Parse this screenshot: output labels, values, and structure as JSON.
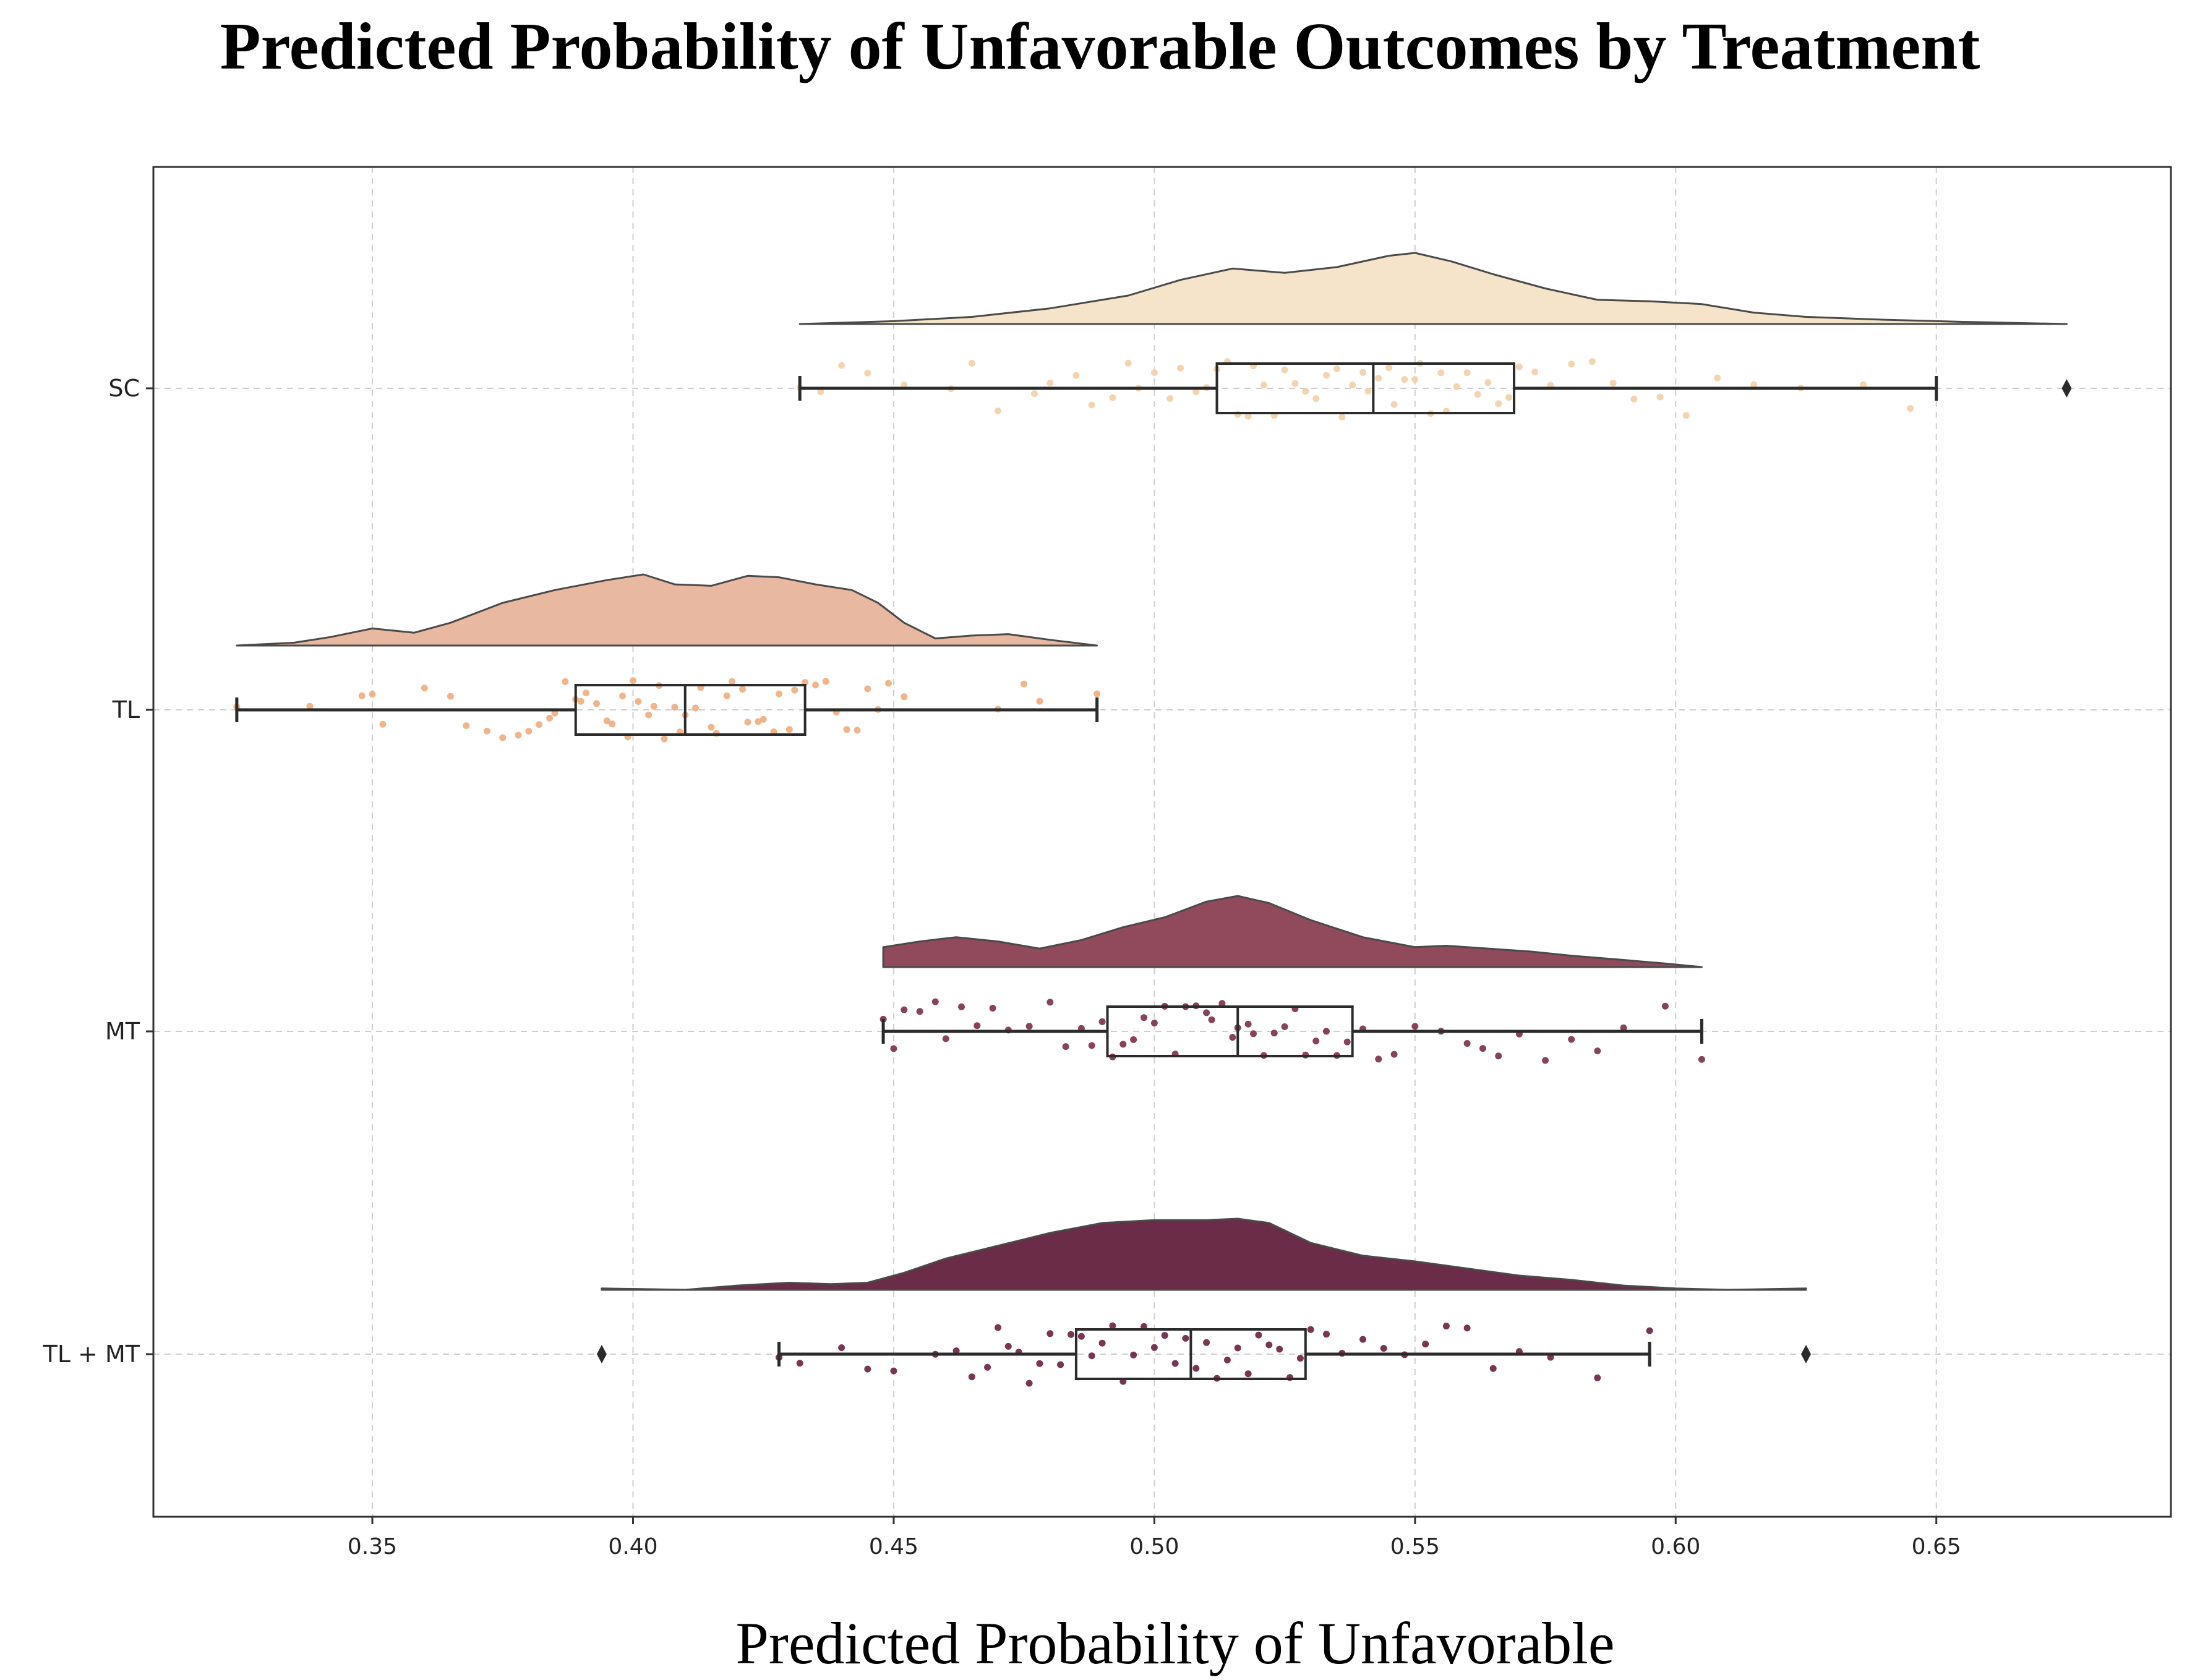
{
  "chart_data": {
    "type": "raincloud",
    "title": "Predicted Probability of Unfavorable Outcomes by Treatment",
    "xlabel": "Predicted Probability of Unfavorable",
    "ylabel": "",
    "xlim": [
      0.308,
      0.695
    ],
    "xticks": [
      0.35,
      0.4,
      0.45,
      0.5,
      0.55,
      0.6,
      0.65
    ],
    "xtick_labels": [
      "0.35",
      "0.40",
      "0.45",
      "0.50",
      "0.55",
      "0.60",
      "0.65"
    ],
    "grid": true,
    "grid_style": "dashed",
    "box_outline_color": "#2b2b2b",
    "series": [
      {
        "name": "SC",
        "color": "#f5e4c9",
        "point_color": "#f2cfa6",
        "box": {
          "whisker_low": 0.432,
          "q1": 0.512,
          "median": 0.542,
          "q3": 0.569,
          "whisker_high": 0.65
        },
        "outliers": [
          0.675
        ],
        "density_x": [
          0.432,
          0.45,
          0.465,
          0.48,
          0.495,
          0.505,
          0.515,
          0.525,
          0.535,
          0.545,
          0.55,
          0.557,
          0.565,
          0.575,
          0.585,
          0.595,
          0.605,
          0.615,
          0.625,
          0.64,
          0.655,
          0.675
        ],
        "density_y": [
          0.0,
          0.04,
          0.1,
          0.22,
          0.4,
          0.62,
          0.78,
          0.72,
          0.8,
          0.96,
          1.0,
          0.88,
          0.7,
          0.5,
          0.34,
          0.32,
          0.28,
          0.16,
          0.1,
          0.06,
          0.03,
          0.0
        ],
        "points": [
          0.432,
          0.436,
          0.44,
          0.445,
          0.452,
          0.461,
          0.465,
          0.47,
          0.477,
          0.48,
          0.485,
          0.488,
          0.492,
          0.495,
          0.497,
          0.5,
          0.503,
          0.505,
          0.508,
          0.51,
          0.512,
          0.514,
          0.516,
          0.518,
          0.519,
          0.521,
          0.523,
          0.525,
          0.527,
          0.529,
          0.531,
          0.533,
          0.535,
          0.536,
          0.538,
          0.54,
          0.541,
          0.543,
          0.545,
          0.546,
          0.548,
          0.55,
          0.551,
          0.553,
          0.555,
          0.556,
          0.558,
          0.56,
          0.562,
          0.564,
          0.566,
          0.568,
          0.57,
          0.573,
          0.576,
          0.58,
          0.584,
          0.588,
          0.592,
          0.597,
          0.602,
          0.608,
          0.615,
          0.624,
          0.636,
          0.645
        ]
      },
      {
        "name": "TL",
        "color": "#e8b9a0",
        "point_color": "#f0ad80",
        "box": {
          "whisker_low": 0.324,
          "q1": 0.389,
          "median": 0.41,
          "q3": 0.433,
          "whisker_high": 0.489
        },
        "outliers": [],
        "density_x": [
          0.324,
          0.335,
          0.342,
          0.35,
          0.358,
          0.365,
          0.375,
          0.385,
          0.395,
          0.402,
          0.408,
          0.415,
          0.422,
          0.428,
          0.435,
          0.442,
          0.447,
          0.452,
          0.458,
          0.465,
          0.472,
          0.48,
          0.489
        ],
        "density_y": [
          0.0,
          0.04,
          0.12,
          0.24,
          0.18,
          0.32,
          0.6,
          0.78,
          0.92,
          1.0,
          0.86,
          0.84,
          0.98,
          0.96,
          0.86,
          0.78,
          0.6,
          0.32,
          0.1,
          0.14,
          0.16,
          0.08,
          0.0
        ],
        "points": [
          0.324,
          0.338,
          0.348,
          0.35,
          0.352,
          0.36,
          0.365,
          0.368,
          0.372,
          0.375,
          0.378,
          0.38,
          0.382,
          0.384,
          0.385,
          0.387,
          0.389,
          0.39,
          0.391,
          0.393,
          0.395,
          0.396,
          0.398,
          0.399,
          0.4,
          0.401,
          0.403,
          0.404,
          0.405,
          0.406,
          0.408,
          0.409,
          0.41,
          0.412,
          0.413,
          0.415,
          0.416,
          0.418,
          0.419,
          0.421,
          0.422,
          0.424,
          0.425,
          0.427,
          0.428,
          0.43,
          0.431,
          0.433,
          0.435,
          0.437,
          0.439,
          0.441,
          0.443,
          0.445,
          0.447,
          0.449,
          0.452,
          0.47,
          0.475,
          0.478,
          0.489
        ]
      },
      {
        "name": "MT",
        "color": "#904a5c",
        "point_color": "#7a2f48",
        "box": {
          "whisker_low": 0.448,
          "q1": 0.491,
          "median": 0.516,
          "q3": 0.538,
          "whisker_high": 0.605
        },
        "outliers": [],
        "density_x": [
          0.448,
          0.455,
          0.462,
          0.47,
          0.478,
          0.486,
          0.494,
          0.502,
          0.51,
          0.516,
          0.522,
          0.53,
          0.54,
          0.55,
          0.556,
          0.564,
          0.572,
          0.58,
          0.59,
          0.598,
          0.605
        ],
        "density_y": [
          0.28,
          0.36,
          0.42,
          0.36,
          0.26,
          0.38,
          0.56,
          0.7,
          0.92,
          1.0,
          0.9,
          0.66,
          0.42,
          0.28,
          0.3,
          0.26,
          0.22,
          0.16,
          0.1,
          0.05,
          0.0
        ],
        "points": [
          0.448,
          0.45,
          0.452,
          0.455,
          0.458,
          0.46,
          0.463,
          0.466,
          0.469,
          0.472,
          0.476,
          0.48,
          0.483,
          0.486,
          0.488,
          0.49,
          0.492,
          0.494,
          0.496,
          0.498,
          0.5,
          0.502,
          0.504,
          0.506,
          0.508,
          0.51,
          0.511,
          0.513,
          0.515,
          0.516,
          0.518,
          0.519,
          0.521,
          0.523,
          0.525,
          0.527,
          0.529,
          0.531,
          0.533,
          0.535,
          0.537,
          0.54,
          0.543,
          0.546,
          0.55,
          0.555,
          0.56,
          0.563,
          0.566,
          0.57,
          0.575,
          0.58,
          0.585,
          0.59,
          0.598,
          0.605
        ]
      },
      {
        "name": "TL + MT",
        "color": "#6a2c46",
        "point_color": "#6a2040",
        "box": {
          "whisker_low": 0.428,
          "q1": 0.485,
          "median": 0.507,
          "q3": 0.529,
          "whisker_high": 0.595
        },
        "outliers": [
          0.394,
          0.625
        ],
        "density_x": [
          0.394,
          0.41,
          0.42,
          0.43,
          0.438,
          0.445,
          0.452,
          0.46,
          0.47,
          0.48,
          0.49,
          0.5,
          0.51,
          0.516,
          0.522,
          0.53,
          0.54,
          0.55,
          0.56,
          0.57,
          0.58,
          0.59,
          0.6,
          0.61,
          0.625
        ],
        "density_y": [
          0.02,
          0.0,
          0.06,
          0.1,
          0.08,
          0.1,
          0.24,
          0.44,
          0.62,
          0.8,
          0.94,
          0.98,
          0.98,
          1.0,
          0.94,
          0.66,
          0.48,
          0.4,
          0.3,
          0.2,
          0.14,
          0.06,
          0.02,
          0.0,
          0.02
        ],
        "points": [
          0.428,
          0.432,
          0.44,
          0.445,
          0.45,
          0.458,
          0.462,
          0.465,
          0.468,
          0.47,
          0.472,
          0.474,
          0.476,
          0.478,
          0.48,
          0.482,
          0.484,
          0.486,
          0.488,
          0.49,
          0.492,
          0.494,
          0.496,
          0.498,
          0.5,
          0.502,
          0.504,
          0.506,
          0.508,
          0.51,
          0.512,
          0.514,
          0.516,
          0.518,
          0.52,
          0.522,
          0.524,
          0.526,
          0.528,
          0.53,
          0.533,
          0.536,
          0.54,
          0.544,
          0.548,
          0.552,
          0.556,
          0.56,
          0.565,
          0.57,
          0.576,
          0.585,
          0.595
        ]
      }
    ]
  }
}
